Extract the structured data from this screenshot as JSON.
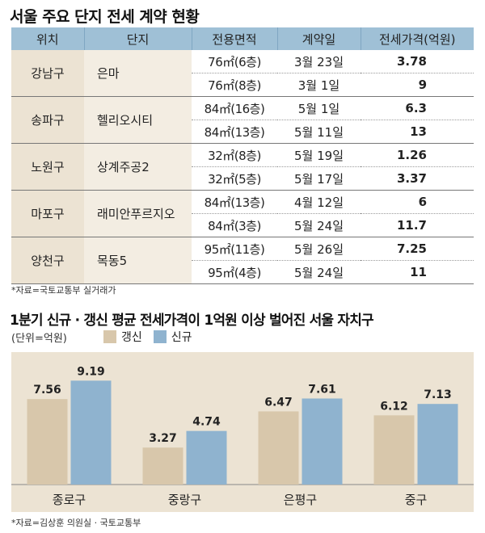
{
  "table": {
    "title": "서울 주요 단지 전세 계약 현황",
    "headers": [
      "위치",
      "단지",
      "전용면적",
      "계약일",
      "전세가격(억원)"
    ],
    "groups": [
      {
        "location": "강남구",
        "complex": "은마",
        "rows": [
          {
            "area": "76㎡(6층)",
            "date": "3월 23일",
            "price": "3.78"
          },
          {
            "area": "76㎡(8층)",
            "date": "3월 1일",
            "price": "9"
          }
        ]
      },
      {
        "location": "송파구",
        "complex": "헬리오시티",
        "rows": [
          {
            "area": "84㎡(16층)",
            "date": "5월 1일",
            "price": "6.3"
          },
          {
            "area": "84㎡(13층)",
            "date": "5월 11일",
            "price": "13"
          }
        ]
      },
      {
        "location": "노원구",
        "complex": "상계주공2",
        "rows": [
          {
            "area": "32㎡(8층)",
            "date": "5월 19일",
            "price": "1.26"
          },
          {
            "area": "32㎡(5층)",
            "date": "5월 17일",
            "price": "3.37"
          }
        ]
      },
      {
        "location": "마포구",
        "complex": "래미안푸르지오",
        "rows": [
          {
            "area": "84㎡(13층)",
            "date": "4월 12일",
            "price": "6"
          },
          {
            "area": "84㎡(3층)",
            "date": "5월 24일",
            "price": "11.7"
          }
        ]
      },
      {
        "location": "양천구",
        "complex": "목동5",
        "rows": [
          {
            "area": "95㎡(11층)",
            "date": "5월 26일",
            "price": "7.25"
          },
          {
            "area": "95㎡(4층)",
            "date": "5월 24일",
            "price": "11"
          }
        ]
      }
    ],
    "source": "*자료=국토교통부 실거래가"
  },
  "chart_data": {
    "type": "bar",
    "title": "1분기 신규 · 갱신 평균 전세가격이 1억원 이상 벌어진 서울 자치구",
    "unit_label": "(단위=억원)",
    "categories": [
      "종로구",
      "중랑구",
      "은평구",
      "중구"
    ],
    "series": [
      {
        "name": "갱신",
        "values": [
          7.56,
          3.27,
          6.47,
          6.12
        ],
        "color": "#d8c7ab"
      },
      {
        "name": "신규",
        "values": [
          9.19,
          4.74,
          7.61,
          7.13
        ],
        "color": "#8fb3cf"
      }
    ],
    "ylim": [
      0,
      10
    ],
    "grid": false,
    "legend": "top-left",
    "source": "*자료=김상훈 의원실 · 국토교통부"
  }
}
